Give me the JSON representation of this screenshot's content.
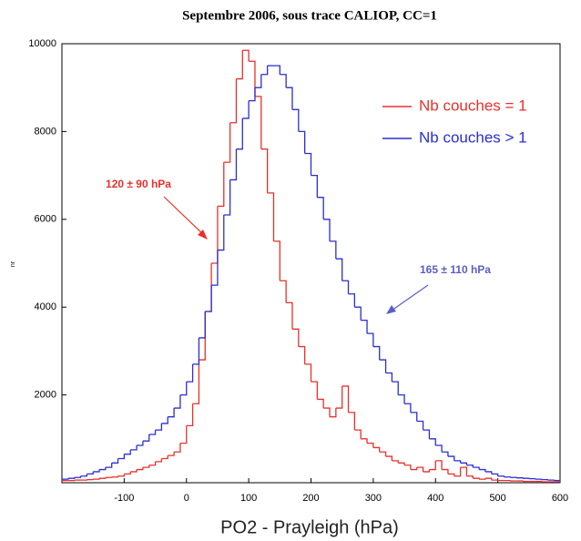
{
  "chart_data": {
    "type": "histogram-step",
    "title": "Septembre 2006, sous trace CALIOP, CC=1",
    "x_label": "PO2 - Prayleigh (hPa)",
    "y_label": "nr",
    "bins": [
      -200,
      -190,
      -180,
      -170,
      -160,
      -150,
      -140,
      -130,
      -120,
      -110,
      -100,
      -90,
      -80,
      -70,
      -60,
      -50,
      -40,
      -30,
      -20,
      -10,
      0,
      10,
      20,
      30,
      40,
      50,
      60,
      70,
      80,
      90,
      100,
      110,
      120,
      130,
      140,
      150,
      160,
      170,
      180,
      190,
      200,
      210,
      220,
      230,
      240,
      250,
      260,
      270,
      280,
      290,
      300,
      310,
      320,
      330,
      340,
      350,
      360,
      370,
      380,
      390,
      400,
      410,
      420,
      430,
      440,
      450,
      460,
      470,
      480,
      490,
      500,
      510,
      520,
      530,
      540,
      550,
      560,
      570,
      580,
      590,
      600
    ],
    "series": [
      {
        "name": "Nb couches = 1",
        "color": "#e8302a",
        "values": [
          50,
          50,
          60,
          60,
          70,
          80,
          100,
          120,
          130,
          150,
          200,
          250,
          300,
          350,
          400,
          480,
          550,
          620,
          700,
          900,
          1300,
          1800,
          2800,
          3900,
          5000,
          6300,
          7300,
          8200,
          9200,
          9850,
          9600,
          8800,
          7600,
          6600,
          5500,
          4600,
          4100,
          3500,
          3100,
          2700,
          2300,
          1900,
          1700,
          1500,
          1700,
          2200,
          1600,
          1200,
          1000,
          900,
          800,
          700,
          600,
          500,
          450,
          400,
          300,
          350,
          250,
          300,
          500,
          300,
          200,
          150,
          350,
          150,
          100,
          80,
          100,
          60,
          50,
          50,
          40,
          40,
          30,
          30,
          30,
          20,
          20,
          20
        ]
      },
      {
        "name": "Nb couches > 1",
        "color": "#2a2ed0",
        "values": [
          80,
          100,
          120,
          150,
          200,
          250,
          300,
          350,
          450,
          550,
          650,
          750,
          850,
          950,
          1100,
          1200,
          1350,
          1500,
          1700,
          2000,
          2300,
          2700,
          3300,
          3900,
          4500,
          5300,
          6100,
          6900,
          7600,
          8300,
          8700,
          9000,
          9300,
          9500,
          9500,
          9300,
          9000,
          8500,
          8000,
          7500,
          7000,
          6500,
          6000,
          5500,
          5100,
          4600,
          4300,
          4000,
          3700,
          3400,
          3100,
          2800,
          2500,
          2300,
          2000,
          1800,
          1600,
          1400,
          1200,
          1000,
          850,
          700,
          600,
          500,
          450,
          400,
          350,
          300,
          250,
          200,
          150,
          130,
          120,
          110,
          100,
          90,
          80,
          70,
          60,
          50
        ]
      }
    ],
    "annotations": [
      "120 ± 90 hPa",
      "165 ± 110 hPa"
    ],
    "xlim": [
      -200,
      600
    ],
    "xticks": [
      -100,
      0,
      100,
      200,
      300,
      400,
      500,
      600
    ],
    "ylim": [
      0,
      10000
    ],
    "yticks": [
      2000,
      4000,
      6000,
      8000,
      10000
    ],
    "grid": false
  }
}
